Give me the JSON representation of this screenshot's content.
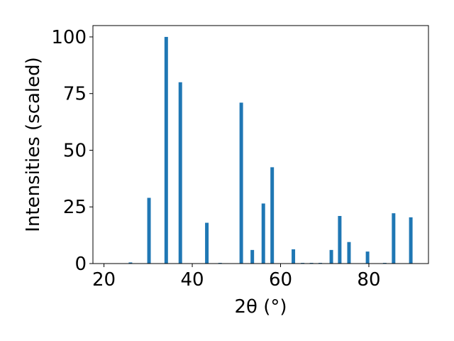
{
  "chart_data": {
    "type": "bar",
    "title": "",
    "xlabel": "2θ (°)",
    "ylabel": "Intensities (scaled)",
    "xlim": [
      17.5,
      93.5
    ],
    "ylim": [
      0,
      105
    ],
    "xticks": [
      20,
      40,
      60,
      80
    ],
    "yticks": [
      0,
      25,
      50,
      75,
      100
    ],
    "grid": false,
    "bar_color": "#1f77b4",
    "bar_width": 0.8,
    "x": [
      26.0,
      30.2,
      34.1,
      37.3,
      43.3,
      46.3,
      51.1,
      53.6,
      56.1,
      58.1,
      62.9,
      65.0,
      67.0,
      69.0,
      71.5,
      73.4,
      75.5,
      79.7,
      83.6,
      85.6,
      89.5
    ],
    "values": [
      0.5,
      29,
      100,
      80,
      18,
      0.3,
      71,
      6,
      26.5,
      42.5,
      6.3,
      0.3,
      0.3,
      0.3,
      6,
      21,
      9.5,
      5.3,
      0.3,
      22.2,
      20.4
    ]
  }
}
